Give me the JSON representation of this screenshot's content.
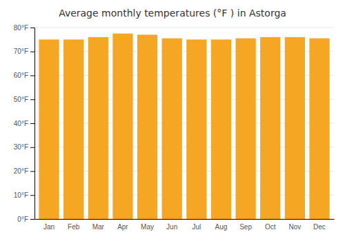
{
  "chart_data": {
    "type": "bar",
    "title": "Average monthly temperatures (°F ) in Astorga",
    "categories": [
      "Jan",
      "Feb",
      "Mar",
      "Apr",
      "May",
      "Jun",
      "Jul",
      "Aug",
      "Sep",
      "Oct",
      "Nov",
      "Dec"
    ],
    "values": [
      75.0,
      75.0,
      76.0,
      77.5,
      77.0,
      75.5,
      75.0,
      75.0,
      75.5,
      76.0,
      76.0,
      75.5
    ],
    "color": "#F5A623",
    "ylim": [
      0,
      80
    ],
    "yticks": [
      {
        "value": 0,
        "label": "0°F"
      },
      {
        "value": 10,
        "label": "10°F"
      },
      {
        "value": 20,
        "label": "20°F"
      },
      {
        "value": 30,
        "label": "30°F"
      },
      {
        "value": 40,
        "label": "40°F"
      },
      {
        "value": 50,
        "label": "50°F"
      },
      {
        "value": 60,
        "label": "60°F"
      },
      {
        "value": 70,
        "label": "70°F"
      },
      {
        "value": 80,
        "label": "80°F"
      }
    ],
    "grid": true
  }
}
